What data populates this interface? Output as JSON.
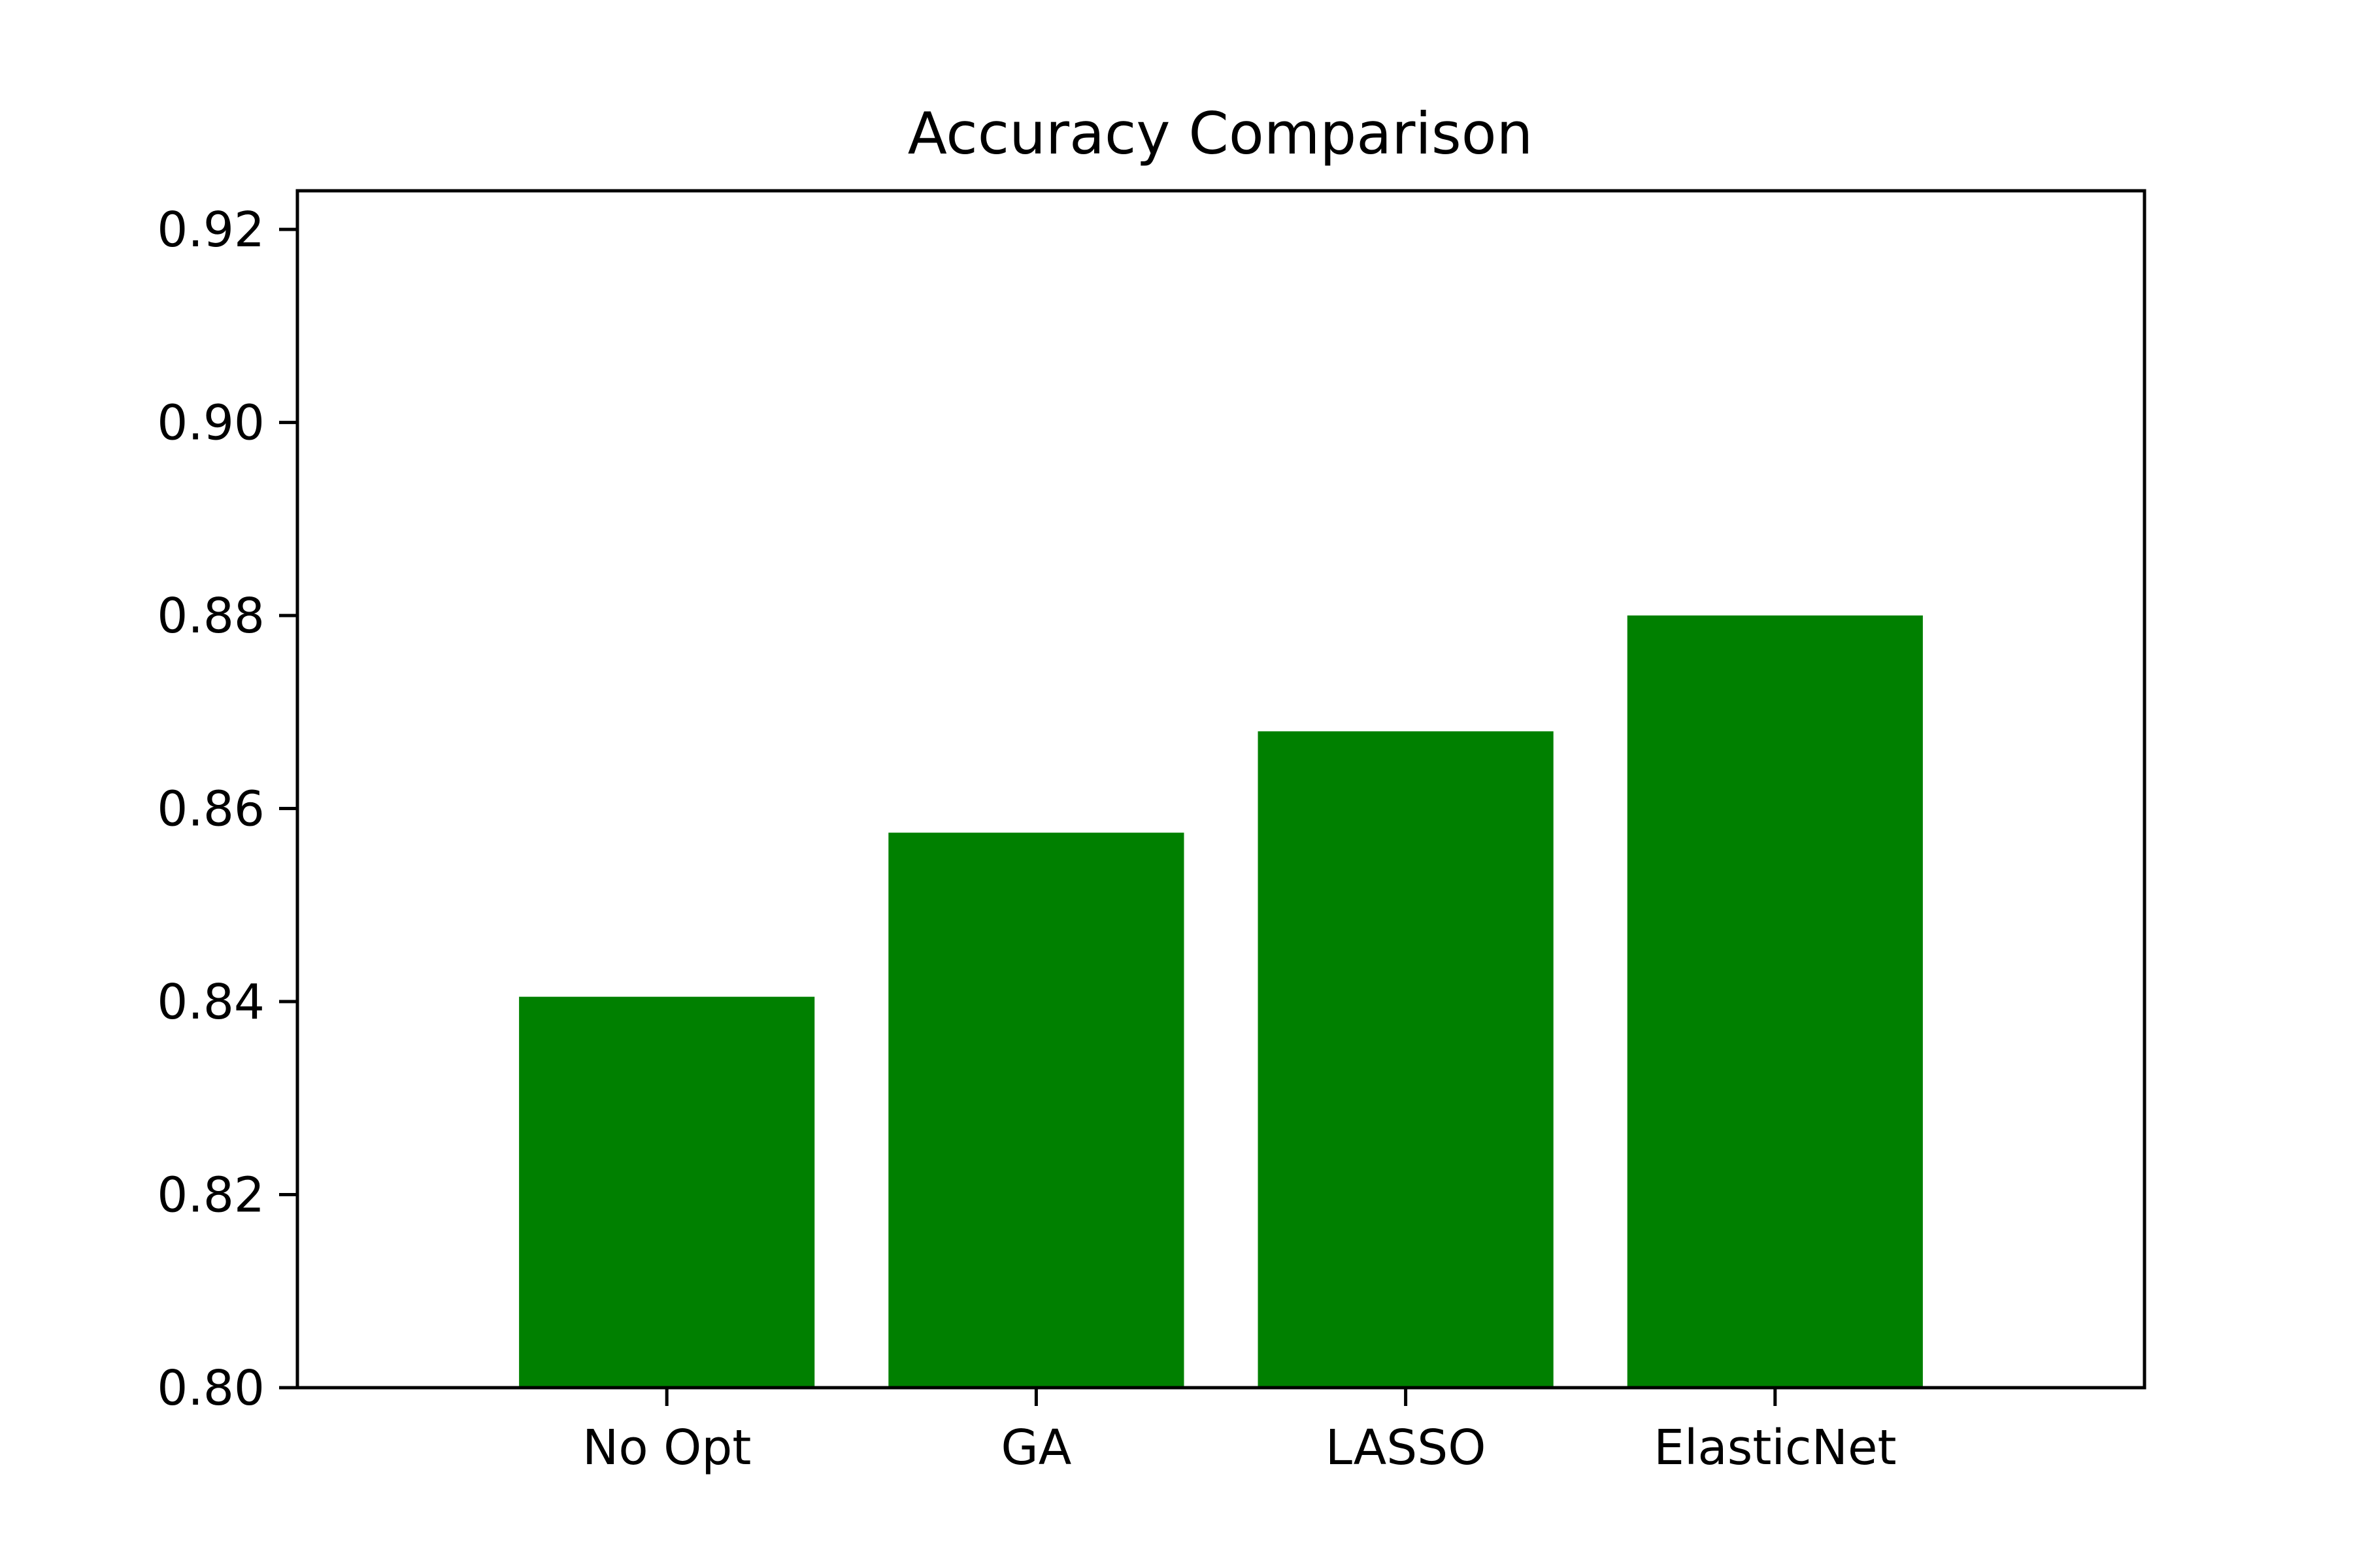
{
  "chart_data": {
    "type": "bar",
    "title": "Accuracy Comparison",
    "xlabel": "",
    "ylabel": "",
    "categories": [
      "No Opt",
      "GA",
      "LASSO",
      "ElasticNet"
    ],
    "values": [
      0.8405,
      0.8575,
      0.868,
      0.88
    ],
    "ylim": [
      0.8,
      0.924
    ],
    "yticks": [
      "0.80",
      "0.82",
      "0.84",
      "0.86",
      "0.88",
      "0.90",
      "0.92"
    ],
    "grid": false,
    "legend": "none",
    "bar_color": "#008000"
  }
}
